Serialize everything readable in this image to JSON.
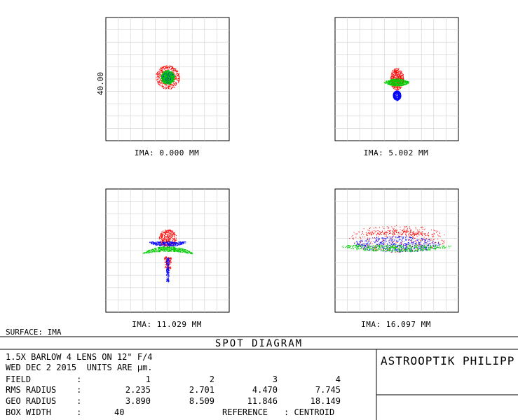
{
  "surface_label": "SURFACE: IMA",
  "title": "SPOT DIAGRAM",
  "company": "ASTROOPTIK PHILIPP",
  "info": {
    "line1": "1.5X BARLOW 4 LENS ON 12\" F/4",
    "line2": "WED DEC 2 2015  UNITS ARE µm.",
    "field_label": "FIELD         :",
    "rms_label": "RMS RADIUS    :",
    "geo_label": "GEO RADIUS    :",
    "box_label": "BOX WIDTH     :",
    "box_value": "40",
    "reference_label": "REFERENCE",
    "reference_value": ": CENTROID"
  },
  "fields": [
    "1",
    "2",
    "3",
    "4"
  ],
  "rms_radius": [
    "2.235",
    "2.701",
    "4.470",
    "7.745"
  ],
  "geo_radius": [
    "3.890",
    "8.509",
    "11.846",
    "18.149"
  ],
  "colors": {
    "wavelength_1": "#0000ff",
    "wavelength_2": "#00cc00",
    "wavelength_3": "#ff0000",
    "grid": "#d0d0d0",
    "frame": "#000000"
  },
  "chart_data": {
    "type": "scatter",
    "box_width": 40,
    "ylabel": "40.00",
    "panels": [
      {
        "label": "IMA: 0.000 MM",
        "field": 1,
        "rms": 2.235,
        "geo": 3.89
      },
      {
        "label": "IMA: 5.002 MM",
        "field": 2,
        "rms": 2.701,
        "geo": 8.509
      },
      {
        "label": "IMA: 11.029 MM",
        "field": 3,
        "rms": 4.47,
        "geo": 11.846
      },
      {
        "label": "IMA: 16.097 MM",
        "field": 4,
        "rms": 7.745,
        "geo": 18.149
      }
    ]
  }
}
